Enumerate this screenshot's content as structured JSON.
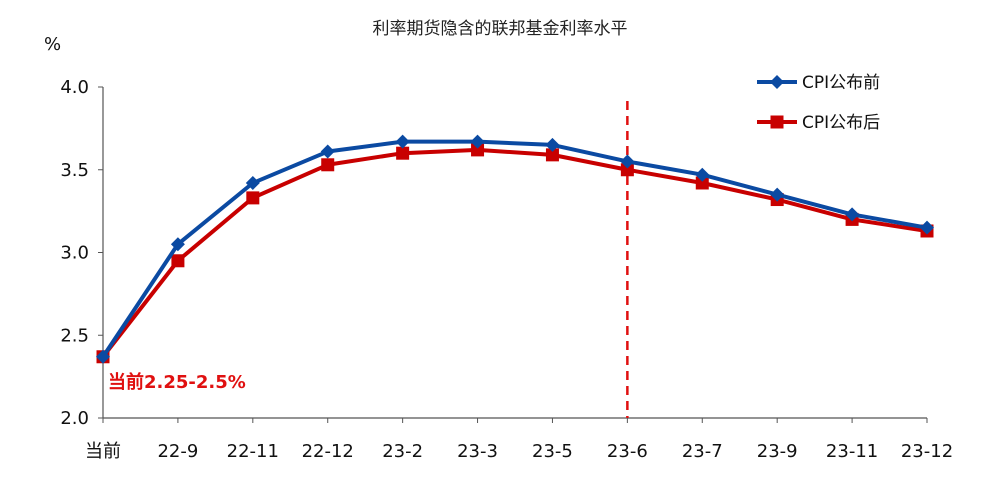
{
  "chart_data": {
    "type": "line",
    "title": "利率期货隐含的联邦基金利率水平",
    "ylabel": "%",
    "ylim": [
      2.0,
      4.0
    ],
    "yticks": [
      "2.0",
      "2.5",
      "3.0",
      "3.5",
      "4.0"
    ],
    "yticks_values": [
      2.0,
      2.5,
      3.0,
      3.5,
      4.0
    ],
    "categories": [
      "当前",
      "22-9",
      "22-11",
      "22-12",
      "23-2",
      "23-3",
      "23-5",
      "23-6",
      "23-7",
      "23-9",
      "23-11",
      "23-12"
    ],
    "series": [
      {
        "name": "CPI公布前",
        "color": "#0b4aa2",
        "marker": "diamond",
        "values": [
          2.37,
          3.05,
          3.42,
          3.61,
          3.67,
          3.67,
          3.65,
          3.55,
          3.47,
          3.35,
          3.23,
          3.15
        ]
      },
      {
        "name": "CPI公布后",
        "color": "#c80000",
        "marker": "square",
        "values": [
          2.37,
          2.95,
          3.33,
          3.53,
          3.6,
          3.62,
          3.59,
          3.5,
          3.42,
          3.32,
          3.2,
          3.13
        ]
      }
    ],
    "vline": {
      "category": "23-6",
      "color": "#e01010",
      "style": "dashed"
    },
    "annotation": {
      "prefix": "当前",
      "value": "2.25-2.5%",
      "color": "#e01010"
    },
    "grid": false,
    "legend_position": "top-right"
  }
}
